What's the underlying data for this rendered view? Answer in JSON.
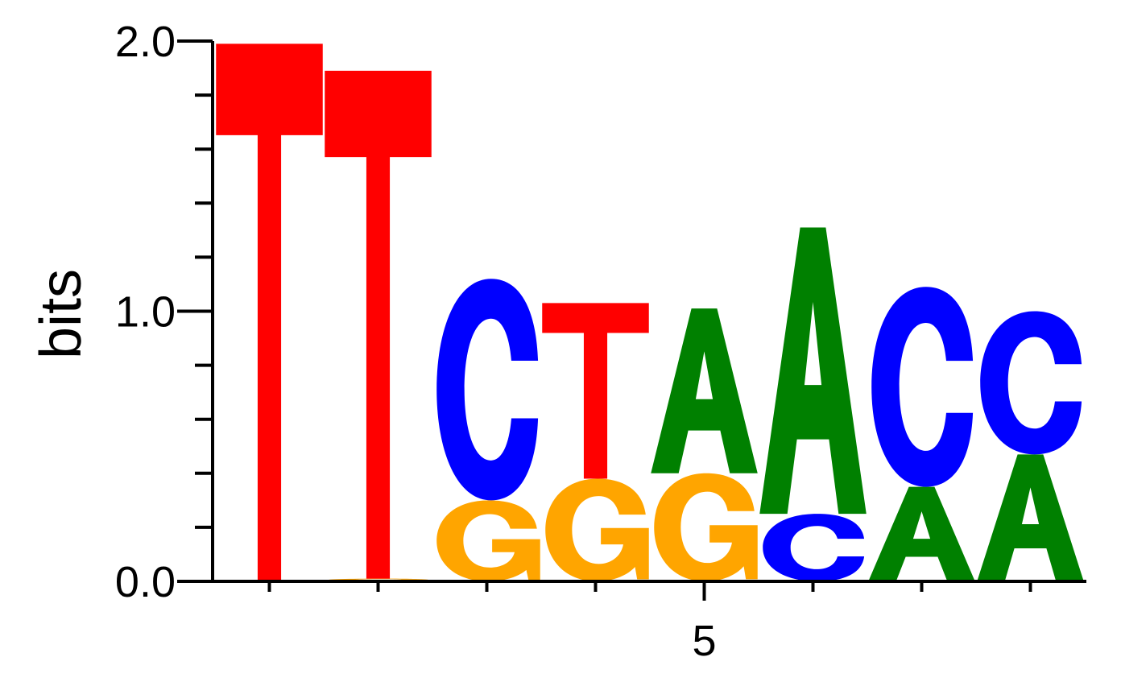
{
  "chart_data": {
    "type": "sequence_logo",
    "ylabel": "bits",
    "ylim": [
      0,
      2.0
    ],
    "ytick_labels": [
      "0.0",
      "1.0",
      "2.0"
    ],
    "ytick_values": [
      0,
      1,
      2
    ],
    "yminor_values": [
      0.2,
      0.4,
      0.6,
      0.8,
      1.2,
      1.4,
      1.6,
      1.8
    ],
    "xtick_labels": [
      "5"
    ],
    "xtick_label_position": 5,
    "positions": [
      1,
      2,
      3,
      4,
      5,
      6,
      7,
      8
    ],
    "colors": {
      "A": "#008000",
      "C": "#0000ff",
      "G": "#ffa500",
      "T": "#ff0000"
    },
    "stacks": [
      {
        "position": 1,
        "letters": [
          {
            "letter": "T",
            "bits": 1.99
          }
        ]
      },
      {
        "position": 2,
        "letters": [
          {
            "letter": "G",
            "bits": 0.01
          },
          {
            "letter": "T",
            "bits": 1.88
          }
        ]
      },
      {
        "position": 3,
        "letters": [
          {
            "letter": "G",
            "bits": 0.3
          },
          {
            "letter": "C",
            "bits": 0.82
          }
        ]
      },
      {
        "position": 4,
        "letters": [
          {
            "letter": "G",
            "bits": 0.38
          },
          {
            "letter": "T",
            "bits": 0.65
          }
        ]
      },
      {
        "position": 5,
        "letters": [
          {
            "letter": "G",
            "bits": 0.4
          },
          {
            "letter": "A",
            "bits": 0.61
          }
        ]
      },
      {
        "position": 6,
        "letters": [
          {
            "letter": "C",
            "bits": 0.25
          },
          {
            "letter": "A",
            "bits": 1.06
          }
        ]
      },
      {
        "position": 7,
        "letters": [
          {
            "letter": "A",
            "bits": 0.35
          },
          {
            "letter": "C",
            "bits": 0.74
          }
        ]
      },
      {
        "position": 8,
        "letters": [
          {
            "letter": "A",
            "bits": 0.47
          },
          {
            "letter": "C",
            "bits": 0.53
          }
        ]
      }
    ]
  }
}
